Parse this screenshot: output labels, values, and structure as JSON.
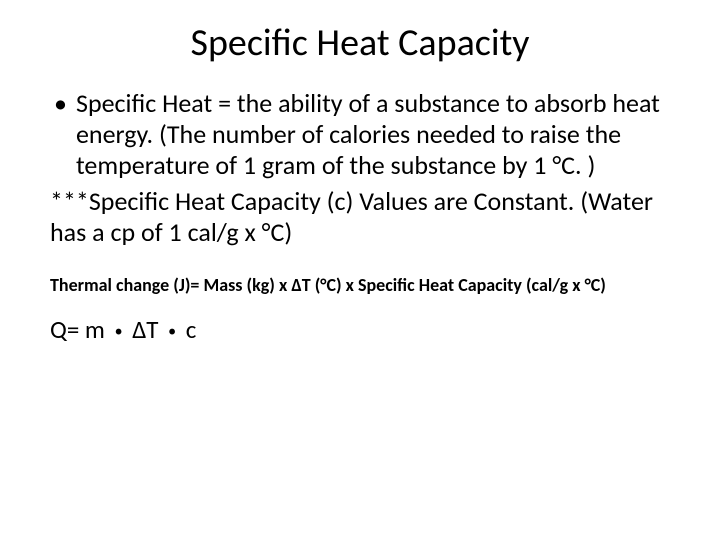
{
  "colors": {
    "background": "#ffffff",
    "text": "#000000"
  },
  "typography": {
    "title_fontsize": 38,
    "body_fontsize": 26,
    "thermal_fontsize": 18,
    "formula_fontsize": 25,
    "font_family": "Calibri"
  },
  "title": "Specific Heat Capacity",
  "bullets": [
    "Specific Heat = the ability of a substance to absorb heat energy. (The number of calories needed to raise the temperature of 1 gram of the substance by 1 °C. )"
  ],
  "emphasis_line": "***Specific Heat Capacity (c) Values are Constant. (Water has a cp of 1 cal/g x °C)",
  "thermal_line": "Thermal change (J)= Mass (kg) x ΔT (°C) x Specific Heat Capacity (cal/g x °C)",
  "formula": {
    "lhs": "Q= m",
    "dot": "•",
    "mid": "ΔT",
    "rhs": "c"
  }
}
